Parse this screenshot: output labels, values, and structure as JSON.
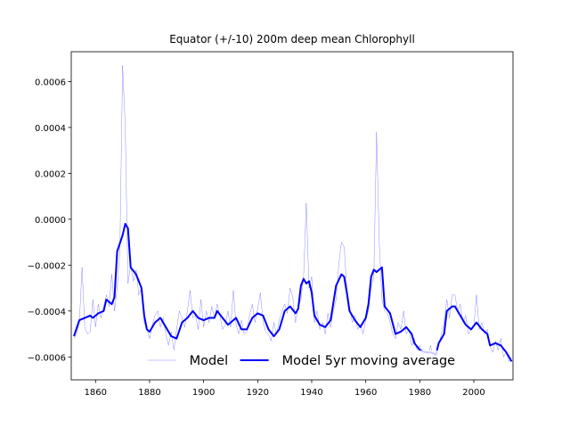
{
  "chart_data": {
    "type": "line",
    "title": "Equator (+/-10) 200m deep mean Chlorophyll",
    "xlim": [
      1851,
      2014.5
    ],
    "ylim": [
      -0.0007,
      0.00073
    ],
    "xticks": [
      1860,
      1880,
      1900,
      1920,
      1940,
      1960,
      1980,
      2000
    ],
    "yticks": [
      {
        "value": -0.0006,
        "label": "−0.0006"
      },
      {
        "value": -0.0004,
        "label": "−0.0004"
      },
      {
        "value": -0.0002,
        "label": "−0.0002"
      },
      {
        "value": 0,
        "label": "0.0000"
      },
      {
        "value": 0.0002,
        "label": "0.0002"
      },
      {
        "value": 0.0004,
        "label": "0.0004"
      },
      {
        "value": 0.0006,
        "label": "0.0006"
      }
    ],
    "legend": "lower center",
    "series": [
      {
        "name": "Model",
        "color": "#0000ff",
        "opacity": 0.45,
        "linewidth": 0.5,
        "x": [
          1852,
          1853,
          1854,
          1855,
          1856,
          1857,
          1858,
          1859,
          1860,
          1861,
          1862,
          1863,
          1864,
          1865,
          1866,
          1867,
          1868,
          1869,
          1870,
          1871,
          1872,
          1873,
          1874,
          1875,
          1876,
          1877,
          1878,
          1879,
          1880,
          1881,
          1882,
          1883,
          1884,
          1885,
          1886,
          1887,
          1888,
          1889,
          1890,
          1891,
          1892,
          1893,
          1894,
          1895,
          1896,
          1897,
          1898,
          1899,
          1900,
          1901,
          1902,
          1903,
          1904,
          1905,
          1906,
          1907,
          1908,
          1909,
          1910,
          1911,
          1912,
          1913,
          1914,
          1915,
          1916,
          1917,
          1918,
          1919,
          1920,
          1921,
          1922,
          1923,
          1924,
          1925,
          1926,
          1927,
          1928,
          1929,
          1930,
          1931,
          1932,
          1933,
          1934,
          1935,
          1936,
          1937,
          1938,
          1939,
          1940,
          1941,
          1942,
          1943,
          1944,
          1945,
          1946,
          1947,
          1948,
          1949,
          1950,
          1951,
          1952,
          1953,
          1954,
          1955,
          1956,
          1957,
          1958,
          1959,
          1960,
          1961,
          1962,
          1963,
          1964,
          1965,
          1966,
          1967,
          1968,
          1969,
          1970,
          1971,
          1972,
          1973,
          1974,
          1975,
          1976,
          1977,
          1978,
          1979,
          1980,
          1981,
          1982,
          1983,
          1984,
          1985,
          1986,
          1987,
          1988,
          1989,
          1990,
          1991,
          1992,
          1993,
          1994,
          1995,
          1996,
          1997,
          1998,
          1999,
          2000,
          2001,
          2002,
          2003,
          2004,
          2005,
          2006,
          2007,
          2008,
          2009,
          2010,
          2011,
          2012,
          2013,
          2014
        ],
        "values": [
          -0.00052,
          -0.0005,
          -0.00045,
          -0.00021,
          -0.00047,
          -0.0005,
          -0.00049,
          -0.00035,
          -0.00047,
          -0.00037,
          -0.00043,
          -0.00038,
          -0.00033,
          -0.00038,
          -0.00024,
          -0.0004,
          -0.0003,
          -0.00013,
          0.00067,
          0.0004,
          -0.00028,
          -0.0002,
          -0.00027,
          -0.00022,
          -0.00033,
          -0.0003,
          -0.00045,
          -0.00048,
          -0.00052,
          -0.00046,
          -0.00042,
          -0.0004,
          -0.00047,
          -0.00043,
          -0.0005,
          -0.00055,
          -0.00049,
          -0.00057,
          -0.00048,
          -0.0004,
          -0.00043,
          -0.00047,
          -0.0004,
          -0.00031,
          -0.00043,
          -0.00042,
          -0.00048,
          -0.00035,
          -0.00047,
          -0.0004,
          -0.00045,
          -0.00038,
          -0.00043,
          -0.00037,
          -0.00042,
          -0.00048,
          -0.00046,
          -0.0004,
          -0.00047,
          -0.00031,
          -0.00046,
          -0.0005,
          -0.00044,
          -0.0005,
          -0.00049,
          -0.00042,
          -0.00037,
          -0.00045,
          -0.00039,
          -0.00032,
          -0.00045,
          -0.00049,
          -0.0005,
          -0.00053,
          -0.00045,
          -0.0005,
          -0.00044,
          -0.0004,
          -0.00037,
          -0.00041,
          -0.0003,
          -0.00034,
          -0.00045,
          -0.00038,
          -0.00035,
          -0.00025,
          7e-05,
          -0.0003,
          -0.00025,
          -0.00045,
          -0.0004,
          -0.00048,
          -0.00045,
          -0.0005,
          -0.00041,
          -0.00047,
          -0.0004,
          -0.00035,
          -0.0002,
          -0.0001,
          -0.00012,
          -0.0003,
          -0.00038,
          -0.00045,
          -0.00042,
          -0.00048,
          -0.00046,
          -0.0005,
          -0.00044,
          -0.0004,
          -0.0003,
          -0.00025,
          0.00038,
          -0.0001,
          -0.00035,
          -0.0004,
          -0.00041,
          -0.00045,
          -0.0005,
          -0.00052,
          -0.00045,
          -0.00048,
          -0.0004,
          -0.0005,
          -0.00048,
          -0.00055,
          -0.00052,
          -0.00057,
          -0.00055,
          -0.0006,
          -0.00057,
          -0.00059,
          -0.00055,
          -0.00062,
          -0.00058,
          -0.00055,
          -0.0005,
          -0.00045,
          -0.00035,
          -0.00043,
          -0.00033,
          -0.00033,
          -0.0004,
          -0.00037,
          -0.00045,
          -0.00042,
          -0.0005,
          -0.00048,
          -0.00047,
          -0.00033,
          -0.00048,
          -0.00045,
          -0.0005,
          -0.00048,
          -0.00055,
          -0.00058,
          -0.00053,
          -0.00057,
          -0.00052,
          -0.0006,
          -0.00058,
          -0.00062,
          -0.0006
        ]
      },
      {
        "name": "Model 5yr moving average",
        "color": "#0000ff",
        "opacity": 1,
        "linewidth": 2,
        "x": [
          1852,
          1854,
          1856,
          1858,
          1859,
          1861,
          1863,
          1864,
          1866,
          1867,
          1868,
          1870,
          1871,
          1872,
          1873,
          1875,
          1877,
          1878,
          1879,
          1880,
          1882,
          1884,
          1886,
          1888,
          1890,
          1892,
          1894,
          1896,
          1898,
          1900,
          1902,
          1904,
          1905,
          1907,
          1909,
          1911,
          1912,
          1914,
          1916,
          1918,
          1920,
          1922,
          1924,
          1926,
          1928,
          1930,
          1932,
          1934,
          1935,
          1936,
          1937,
          1938,
          1939,
          1940,
          1941,
          1943,
          1945,
          1947,
          1949,
          1951,
          1952,
          1953,
          1954,
          1956,
          1958,
          1960,
          1961,
          1962,
          1963,
          1964,
          1966,
          1967,
          1969,
          1971,
          1973,
          1975,
          1977,
          1978,
          1980,
          1982,
          1984,
          1986,
          1987,
          1989,
          1990,
          1992,
          1993,
          1995,
          1997,
          1999,
          2001,
          2003,
          2005,
          2006,
          2008,
          2010,
          2012,
          2014
        ],
        "values": [
          -0.00051,
          -0.00044,
          -0.00043,
          -0.00042,
          -0.00043,
          -0.00041,
          -0.0004,
          -0.00035,
          -0.00037,
          -0.00034,
          -0.00014,
          -7e-05,
          -2e-05,
          -4e-05,
          -0.00021,
          -0.00024,
          -0.0003,
          -0.00042,
          -0.00048,
          -0.00049,
          -0.00045,
          -0.00043,
          -0.00047,
          -0.00051,
          -0.00052,
          -0.00045,
          -0.00043,
          -0.0004,
          -0.00043,
          -0.00044,
          -0.00043,
          -0.00043,
          -0.0004,
          -0.00043,
          -0.00046,
          -0.00044,
          -0.00043,
          -0.00048,
          -0.00048,
          -0.00043,
          -0.00041,
          -0.00042,
          -0.00048,
          -0.00051,
          -0.00048,
          -0.0004,
          -0.00038,
          -0.00041,
          -0.00039,
          -0.00029,
          -0.00026,
          -0.00028,
          -0.00027,
          -0.00032,
          -0.00042,
          -0.00046,
          -0.00047,
          -0.00044,
          -0.00029,
          -0.00024,
          -0.00025,
          -0.00032,
          -0.0004,
          -0.00044,
          -0.00047,
          -0.00043,
          -0.00037,
          -0.00025,
          -0.00022,
          -0.00023,
          -0.00021,
          -0.00038,
          -0.00041,
          -0.0005,
          -0.00049,
          -0.00047,
          -0.0005,
          -0.00054,
          -0.00057,
          -0.00058,
          -0.00058,
          -0.00059,
          -0.00054,
          -0.0005,
          -0.0004,
          -0.00038,
          -0.00038,
          -0.00042,
          -0.00046,
          -0.00048,
          -0.00045,
          -0.00048,
          -0.0005,
          -0.00055,
          -0.00054,
          -0.00055,
          -0.00058,
          -0.00062
        ]
      }
    ]
  }
}
